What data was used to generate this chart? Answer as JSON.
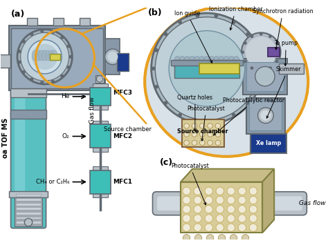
{
  "title": "",
  "background_color": "#ffffff",
  "labels": {
    "panel_a": "(a)",
    "panel_b": "(b)",
    "panel_c": "(c)",
    "tof_ms": "oa TOF MS",
    "gas_flow": "Gas flow",
    "mfc1": "MFC1",
    "mfc2": "MFC2",
    "mfc3": "MFC3",
    "he": "He",
    "o2": "O₂",
    "ch4": "CH₄ or C₂H₆",
    "source_chamber": "Source chamber",
    "ion_guide": "Ion guide",
    "ionization_chamber": "Ionization chamber",
    "synchrotron": "Synchrotron radiation",
    "to_pump": "To pump",
    "skimmer": "Skimmer",
    "xe_lamp": "Xe lamp",
    "quartz_holes": "Quartz holes",
    "photocatalytic_reactor": "Photocatalytic reactor",
    "photocatalyst": "Photocatalyst",
    "gas_flow_c": "Gas flow"
  },
  "colors": {
    "teal": "#3dbfb8",
    "blue_dark": "#1a3a8c",
    "yellow_circle": "#e8a020",
    "gray_light": "#b8c0c8",
    "gray_mid": "#8898a8",
    "gray_dark": "#606870",
    "gray_body": "#909aaa",
    "white": "#ffffff",
    "black": "#000000",
    "yellow_comp": "#d8d050",
    "cyan_tube": "#58c0c0",
    "cyan_light": "#90d8e0",
    "purple": "#7050a0",
    "reactor_tan": "#d8cc98",
    "reactor_tan2": "#c8bc88",
    "reactor_tan3": "#b8ac78"
  },
  "figsize": [
    4.74,
    3.55
  ],
  "dpi": 100
}
